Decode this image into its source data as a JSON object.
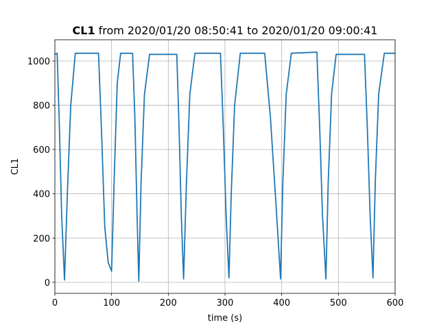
{
  "chart_data": {
    "type": "line",
    "title": {
      "bold": "CL1",
      "rest": "from 2020/01/20 08:50:41 to 2020/01/20 09:00:41"
    },
    "xlabel": "time (s)",
    "ylabel": "CL1",
    "x": [
      0,
      4,
      8,
      12,
      17,
      22,
      28,
      36,
      77,
      82,
      88,
      94,
      100,
      105,
      110,
      116,
      137,
      141,
      145,
      148,
      152,
      158,
      167,
      215,
      219,
      223,
      227,
      232,
      238,
      247,
      292,
      297,
      302,
      307,
      311,
      317,
      327,
      370,
      380,
      390,
      398,
      402,
      408,
      417,
      462,
      467,
      472,
      478,
      482,
      488,
      496,
      546,
      551,
      556,
      561,
      565,
      571,
      581,
      600
    ],
    "series": [
      {
        "color": "#1f77b4",
        "values": [
          1030,
          1035,
          700,
          300,
          10,
          400,
          800,
          1035,
          1035,
          700,
          250,
          90,
          50,
          500,
          900,
          1035,
          1035,
          750,
          300,
          5,
          450,
          850,
          1030,
          1030,
          700,
          300,
          15,
          450,
          850,
          1035,
          1035,
          700,
          300,
          20,
          400,
          800,
          1035,
          1035,
          750,
          350,
          15,
          450,
          850,
          1035,
          1040,
          700,
          300,
          15,
          450,
          850,
          1030,
          1030,
          700,
          300,
          20,
          450,
          850,
          1035,
          1035
        ]
      }
    ],
    "xlim": [
      0,
      600
    ],
    "xticks": [
      0,
      100,
      200,
      300,
      400,
      500,
      600
    ],
    "ylim": [
      -50,
      1096
    ],
    "yticks": [
      0,
      200,
      400,
      600,
      800,
      1000
    ],
    "grid": true
  }
}
